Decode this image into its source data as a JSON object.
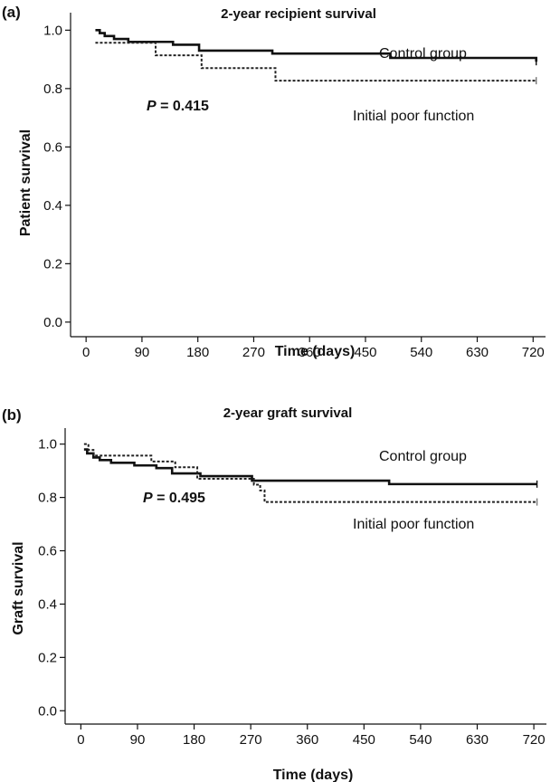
{
  "chart_data": [
    {
      "type": "line",
      "panel": "(a)",
      "title": "2-year recipient survival",
      "xlabel": "Time (days)",
      "ylabel": "Patient survival",
      "xlim": [
        -25,
        740
      ],
      "ylim": [
        -0.05,
        1.06
      ],
      "xticks": [
        "0",
        "90",
        "180",
        "270",
        "360",
        "450",
        "540",
        "630",
        "720"
      ],
      "yticks": [
        "0.0",
        "0.2",
        "0.4",
        "0.6",
        "0.8",
        "1.0"
      ],
      "annotation": {
        "prefix": "P",
        "value": " = 0.415"
      },
      "series": [
        {
          "name": "Control group",
          "style": "solid",
          "color": "#111111",
          "x": [
            15,
            22,
            30,
            45,
            68,
            140,
            182,
            300,
            490,
            725
          ],
          "y": [
            1.0,
            0.99,
            0.98,
            0.97,
            0.96,
            0.95,
            0.93,
            0.92,
            0.905,
            0.892
          ]
        },
        {
          "name": "Initial poor function",
          "style": "dashed",
          "color": "#222222",
          "x": [
            15,
            112,
            186,
            305,
            725
          ],
          "y": [
            0.957,
            0.914,
            0.87,
            0.827,
            0.827
          ]
        }
      ]
    },
    {
      "type": "line",
      "panel": "(b)",
      "title": "2-year graft survival",
      "xlabel": "Time (days)",
      "ylabel": "Graft survival",
      "xlim": [
        -25,
        740
      ],
      "ylim": [
        -0.05,
        1.06
      ],
      "xticks": [
        "0",
        "90",
        "180",
        "270",
        "360",
        "450",
        "540",
        "630",
        "720"
      ],
      "yticks": [
        "0.0",
        "0.2",
        "0.4",
        "0.6",
        "0.8",
        "1.0"
      ],
      "annotation": {
        "prefix": "P",
        "value": " = 0.495"
      },
      "series": [
        {
          "name": "Control group",
          "style": "solid",
          "color": "#111111",
          "x": [
            5,
            10,
            20,
            30,
            48,
            85,
            120,
            145,
            190,
            272,
            490,
            725
          ],
          "y": [
            0.98,
            0.965,
            0.95,
            0.94,
            0.93,
            0.92,
            0.91,
            0.89,
            0.88,
            0.863,
            0.85,
            0.85
          ],
          "dropEnd": 0.85
        },
        {
          "name": "Initial poor function",
          "style": "dashed",
          "color": "#222222",
          "x": [
            5,
            12,
            20,
            112,
            150,
            185,
            275,
            285,
            292,
            725
          ],
          "y": [
            1.0,
            0.978,
            0.957,
            0.935,
            0.913,
            0.87,
            0.848,
            0.826,
            0.783,
            0.783
          ]
        }
      ]
    }
  ]
}
